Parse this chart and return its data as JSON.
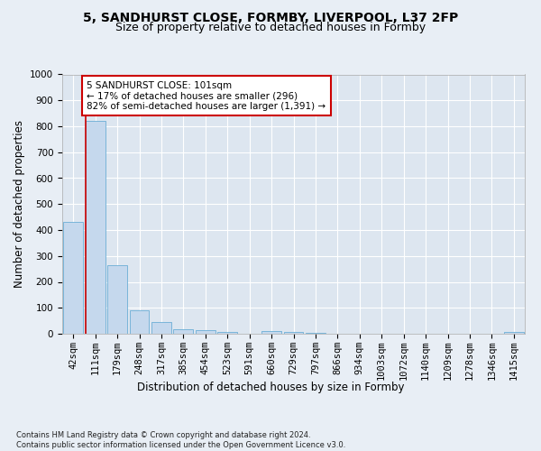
{
  "title1": "5, SANDHURST CLOSE, FORMBY, LIVERPOOL, L37 2FP",
  "title2": "Size of property relative to detached houses in Formby",
  "xlabel": "Distribution of detached houses by size in Formby",
  "ylabel": "Number of detached properties",
  "categories": [
    "42sqm",
    "111sqm",
    "179sqm",
    "248sqm",
    "317sqm",
    "385sqm",
    "454sqm",
    "523sqm",
    "591sqm",
    "660sqm",
    "729sqm",
    "797sqm",
    "866sqm",
    "934sqm",
    "1003sqm",
    "1072sqm",
    "1140sqm",
    "1209sqm",
    "1278sqm",
    "1346sqm",
    "1415sqm"
  ],
  "values": [
    430,
    820,
    265,
    92,
    45,
    18,
    14,
    8,
    0,
    10,
    6,
    4,
    0,
    0,
    0,
    0,
    0,
    0,
    0,
    0,
    8
  ],
  "bar_color": "#c5d8ed",
  "bar_edge_color": "#6baed6",
  "vline_color": "#cc0000",
  "annotation_text": "5 SANDHURST CLOSE: 101sqm\n← 17% of detached houses are smaller (296)\n82% of semi-detached houses are larger (1,391) →",
  "annotation_box_color": "#ffffff",
  "annotation_box_edge": "#cc0000",
  "ylim": [
    0,
    1000
  ],
  "yticks": [
    0,
    100,
    200,
    300,
    400,
    500,
    600,
    700,
    800,
    900,
    1000
  ],
  "background_color": "#e8eef5",
  "plot_bg_color": "#dde6f0",
  "footer": "Contains HM Land Registry data © Crown copyright and database right 2024.\nContains public sector information licensed under the Open Government Licence v3.0.",
  "title1_fontsize": 10,
  "title2_fontsize": 9,
  "xlabel_fontsize": 8.5,
  "ylabel_fontsize": 8.5,
  "tick_fontsize": 7.5,
  "footer_fontsize": 6.0
}
